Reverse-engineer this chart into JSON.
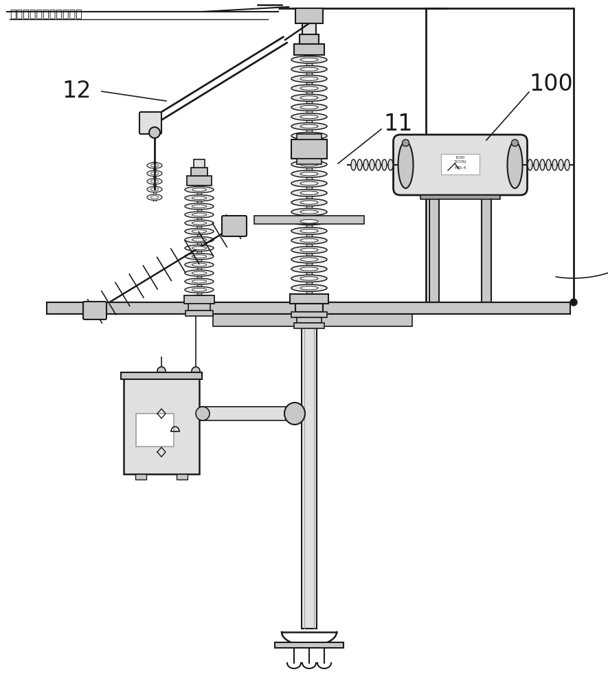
{
  "title": "引至变压器高压侧中性点",
  "label_11": "11",
  "label_12": "12",
  "label_100": "100",
  "bg_color": "#ffffff",
  "lc": "#1a1a1a",
  "gray1": "#c8c8c8",
  "gray2": "#e0e0e0",
  "gray3": "#a0a0a0",
  "figsize": [
    8.85,
    10.0
  ],
  "dpi": 100
}
